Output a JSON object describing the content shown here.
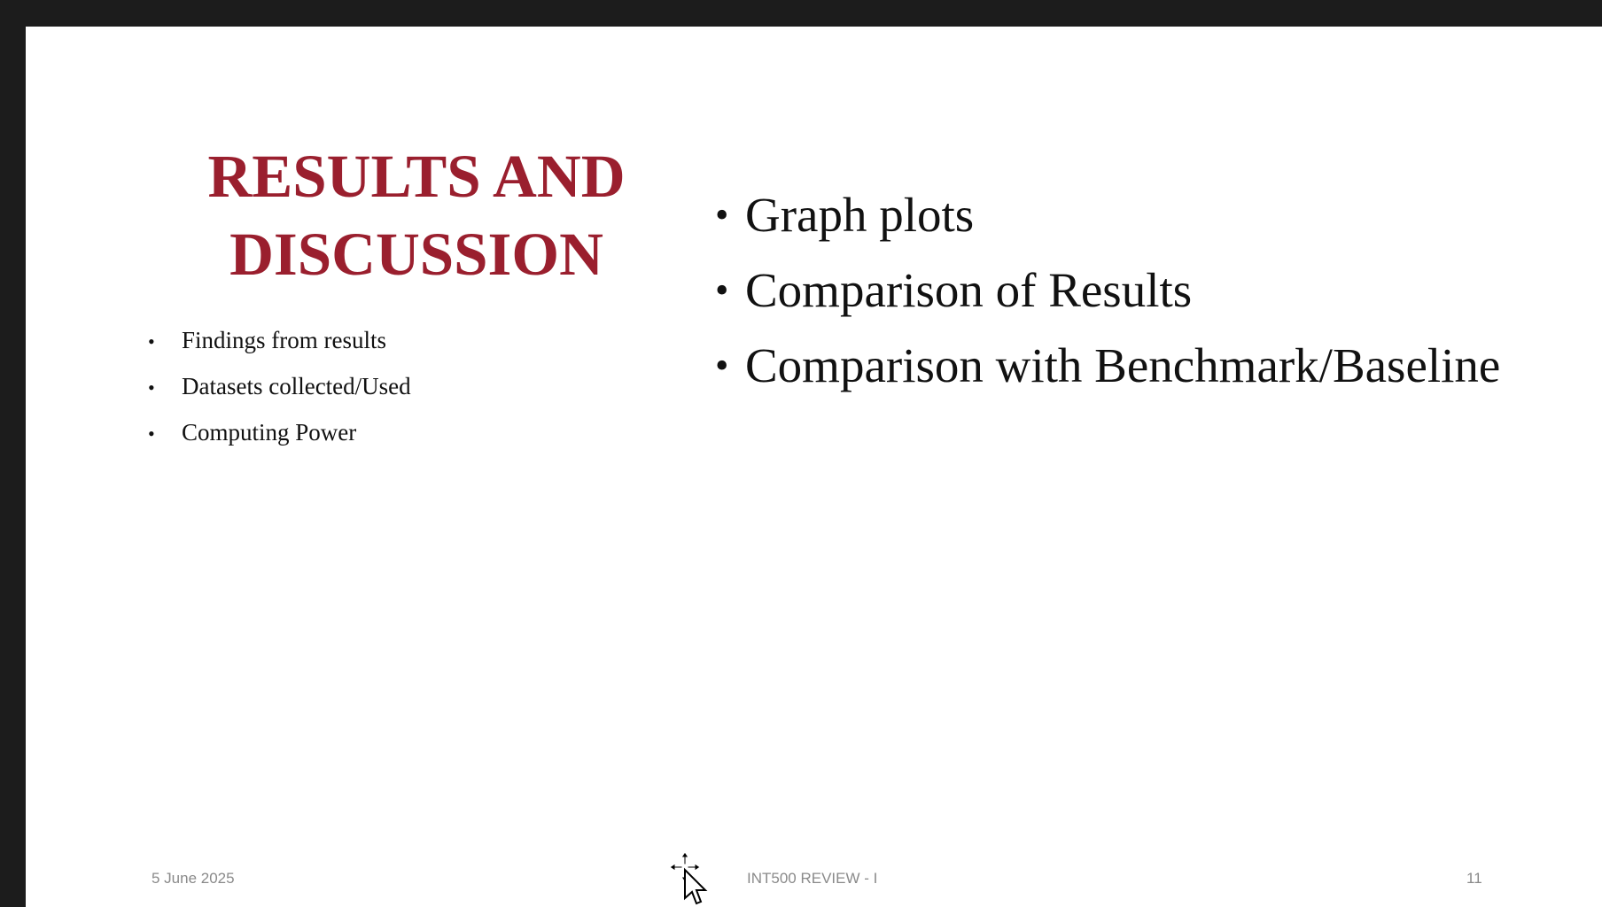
{
  "slide": {
    "title_lines": [
      "RESULTS AND",
      "DISCUSSION"
    ],
    "left_bullets": [
      "Findings from results",
      "Datasets collected/Used",
      "Computing Power"
    ],
    "right_bullets": [
      "Graph plots",
      "Comparison of Results",
      "Comparison with Benchmark/Baseline"
    ],
    "footer": {
      "date": "5 June 2025",
      "center": "INT500 REVIEW - I",
      "page_number": "11"
    }
  },
  "colors": {
    "title": "#9a1f2e",
    "text": "#111111",
    "footer": "#8a8a8a",
    "frame": "#1c1c1c"
  },
  "icons": {
    "cursor": "move-cursor-icon"
  }
}
